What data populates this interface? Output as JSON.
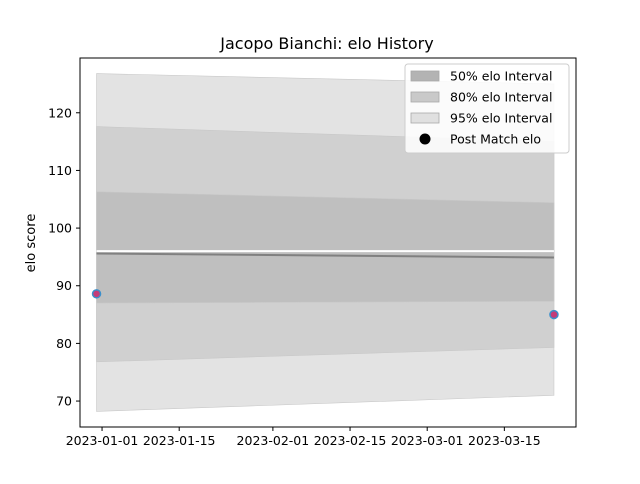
{
  "chart_data": {
    "type": "area",
    "title": "Jacopo Bianchi: elo History",
    "xlabel": "",
    "ylabel": "elo score",
    "x_axis_type": "date",
    "xlim": [
      "2022-12-28",
      "2023-03-28"
    ],
    "ylim": [
      65.5,
      129.5
    ],
    "x_ticks": [
      "2023-01-01",
      "2023-01-15",
      "2023-02-01",
      "2023-02-15",
      "2023-03-01",
      "2023-03-15"
    ],
    "y_ticks": [
      70,
      80,
      90,
      100,
      110,
      120
    ],
    "grid": false,
    "legend_position": "top-right",
    "x": [
      "2022-12-31",
      "2023-03-24"
    ],
    "bands": [
      {
        "name": "95% elo Interval",
        "lower": [
          68.2,
          71.0
        ],
        "upper": [
          126.8,
          125.0
        ],
        "color": "#e3e3e3"
      },
      {
        "name": "80% elo Interval",
        "lower": [
          76.8,
          79.3
        ],
        "upper": [
          117.6,
          115.0
        ],
        "color": "#d0d0d0"
      },
      {
        "name": "50% elo Interval",
        "lower": [
          87.0,
          87.3
        ],
        "upper": [
          106.3,
          104.4
        ],
        "color": "#bfbfbf"
      }
    ],
    "mean_line": {
      "values": [
        95.6,
        94.9
      ],
      "color": "#808080"
    },
    "median_line": {
      "values": [
        96.0,
        96.0
      ],
      "color": "#ffffff"
    },
    "points": {
      "name": "Post Match elo",
      "values": [
        88.6,
        85.0
      ],
      "fill_color": "#c43c7a",
      "edge_color": "#3a8fcc"
    },
    "legend": [
      {
        "label": "50% elo Interval",
        "color": "#b3b3b3",
        "kind": "patch"
      },
      {
        "label": "80% elo Interval",
        "color": "#c9c9c9",
        "kind": "patch"
      },
      {
        "label": "95% elo Interval",
        "color": "#e0e0e0",
        "kind": "patch"
      },
      {
        "label": "Post Match elo",
        "color": "#000000",
        "kind": "marker"
      }
    ]
  }
}
